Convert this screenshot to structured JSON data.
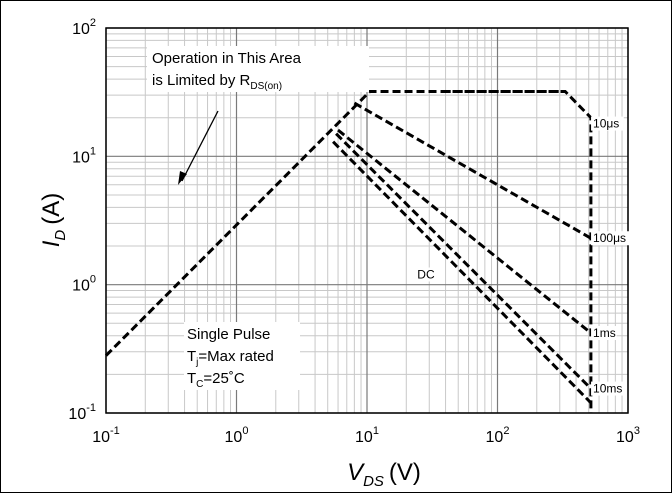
{
  "chart_data": {
    "type": "line",
    "x_scale": "log",
    "y_scale": "log",
    "xlim": [
      0.1,
      1000
    ],
    "ylim": [
      0.1,
      100
    ],
    "grid": true,
    "xlabel": {
      "main": "V",
      "sub": "DS",
      "unit": "(V)"
    },
    "ylabel": {
      "main": "I",
      "sub": "D",
      "unit": "(A)"
    },
    "x_ticks": [
      {
        "value": 0.1,
        "base": "10",
        "exp": "-1"
      },
      {
        "value": 1,
        "base": "10",
        "exp": "0"
      },
      {
        "value": 10,
        "base": "10",
        "exp": "1"
      },
      {
        "value": 100,
        "base": "10",
        "exp": "2"
      },
      {
        "value": 1000,
        "base": "10",
        "exp": "3"
      }
    ],
    "y_ticks": [
      {
        "value": 0.1,
        "base": "10",
        "exp": "-1"
      },
      {
        "value": 1,
        "base": "10",
        "exp": "0"
      },
      {
        "value": 10,
        "base": "10",
        "exp": "1"
      },
      {
        "value": 100,
        "base": "10",
        "exp": "2"
      }
    ],
    "series": [
      {
        "name": "10μs",
        "points": [
          [
            0.1,
            0.28
          ],
          [
            10.5,
            32
          ],
          [
            330,
            32
          ],
          [
            520,
            20
          ],
          [
            520,
            0.1
          ]
        ]
      },
      {
        "name": "100μs",
        "points": [
          [
            8.0,
            26
          ],
          [
            520,
            2.3
          ]
        ]
      },
      {
        "name": "1ms",
        "points": [
          [
            6.0,
            16
          ],
          [
            520,
            0.42
          ]
        ]
      },
      {
        "name": "10ms",
        "points": [
          [
            5.8,
            15
          ],
          [
            520,
            0.155
          ]
        ]
      },
      {
        "name": "DC",
        "points": [
          [
            5.5,
            13
          ],
          [
            520,
            0.12
          ]
        ]
      }
    ],
    "top_segment": {
      "points": [
        [
          38,
          32
        ],
        [
          330,
          32
        ]
      ]
    },
    "line_labels": [
      {
        "text": "10μs",
        "x": 600,
        "y": 18
      },
      {
        "text": "100μs",
        "x": 600,
        "y": 2.3
      },
      {
        "text": "1ms",
        "x": 600,
        "y": 0.42
      },
      {
        "text": "10ms",
        "x": 600,
        "y": 0.155
      },
      {
        "text": "DC",
        "x": 27,
        "y": 1.2
      }
    ],
    "annotations": {
      "rds_line1": "Operation in This Area",
      "rds_line2_main": "is Limited by R",
      "rds_line2_sub": "DS(on)",
      "cond_line1": "Single Pulse",
      "cond_line2_main": "T",
      "cond_line2_sub": "j",
      "cond_line2_rest": "=Max rated",
      "cond_line3_main": "T",
      "cond_line3_sub": "C",
      "cond_line3_rest": "=25˚C"
    }
  }
}
